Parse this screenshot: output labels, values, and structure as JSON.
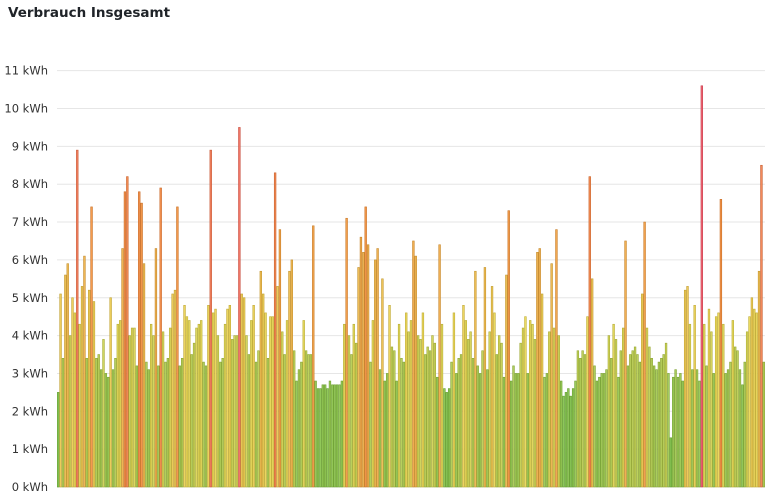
{
  "panel": {
    "title": "Verbrauch Insgesamt"
  },
  "chart_data": {
    "type": "bar",
    "title": "Verbrauch Insgesamt",
    "ylabel": "",
    "unit": "kWh",
    "ylim": [
      0,
      11.5
    ],
    "yticks": [
      0,
      1,
      2,
      3,
      4,
      5,
      6,
      7,
      8,
      9,
      10,
      11
    ],
    "ytick_labels": [
      "0 kWh",
      "1 kWh",
      "2 kWh",
      "3 kWh",
      "4 kWh",
      "5 kWh",
      "6 kWh",
      "7 kWh",
      "8 kWh",
      "9 kWh",
      "10 kWh",
      "11 kWh"
    ],
    "grid": true,
    "color_scale": {
      "low": "#7ab648",
      "mid": "#d9c84e",
      "high": "#e2873b",
      "max": "#e05766"
    },
    "values": [
      2.5,
      5.1,
      3.4,
      5.6,
      5.9,
      4.0,
      5.0,
      4.6,
      8.9,
      4.3,
      5.3,
      6.1,
      3.4,
      5.2,
      7.4,
      4.9,
      3.4,
      3.5,
      3.1,
      3.9,
      3.0,
      2.9,
      5.0,
      3.1,
      3.4,
      4.3,
      4.4,
      6.3,
      7.8,
      8.2,
      4.0,
      4.2,
      4.2,
      3.2,
      7.8,
      7.5,
      5.9,
      3.3,
      3.1,
      4.3,
      4.0,
      6.3,
      3.2,
      7.9,
      4.1,
      3.3,
      3.4,
      4.2,
      5.1,
      5.2,
      7.4,
      3.2,
      3.4,
      4.8,
      4.5,
      4.4,
      3.5,
      3.8,
      4.2,
      4.3,
      4.4,
      3.3,
      3.2,
      4.8,
      8.9,
      4.6,
      4.7,
      4.0,
      3.3,
      3.4,
      4.3,
      4.7,
      4.8,
      3.9,
      4.0,
      4.0,
      9.5,
      5.1,
      5.0,
      4.0,
      3.5,
      4.4,
      4.8,
      3.3,
      3.6,
      5.7,
      5.1,
      4.6,
      3.4,
      4.5,
      4.5,
      8.3,
      5.3,
      6.8,
      4.1,
      3.5,
      4.4,
      5.7,
      6.0,
      3.6,
      2.8,
      3.1,
      3.3,
      4.4,
      3.6,
      3.5,
      3.5,
      6.9,
      2.8,
      2.6,
      2.6,
      2.7,
      2.7,
      2.6,
      2.8,
      2.7,
      2.7,
      2.7,
      2.7,
      2.8,
      4.3,
      7.1,
      4.0,
      3.5,
      4.3,
      3.8,
      5.8,
      6.6,
      6.2,
      7.4,
      6.4,
      3.3,
      4.4,
      6.0,
      6.3,
      3.1,
      5.5,
      2.8,
      3.0,
      4.8,
      3.7,
      3.6,
      2.8,
      4.3,
      3.4,
      3.3,
      4.6,
      4.1,
      4.4,
      6.5,
      6.1,
      4.0,
      3.9,
      4.6,
      3.5,
      3.7,
      3.6,
      4.0,
      3.8,
      2.9,
      6.4,
      4.3,
      2.6,
      2.5,
      2.6,
      3.3,
      4.6,
      3.0,
      3.4,
      3.5,
      4.8,
      4.4,
      3.9,
      4.1,
      3.4,
      5.7,
      3.2,
      3.0,
      3.6,
      5.8,
      3.1,
      4.1,
      5.3,
      4.6,
      3.5,
      4.0,
      3.8,
      2.9,
      5.6,
      7.3,
      2.8,
      3.2,
      3.0,
      3.0,
      3.8,
      4.2,
      4.5,
      3.0,
      4.4,
      4.3,
      3.9,
      6.2,
      6.3,
      5.1,
      2.9,
      3.0,
      4.1,
      5.9,
      4.2,
      6.8,
      4.0,
      2.8,
      2.4,
      2.5,
      2.6,
      2.4,
      2.6,
      2.8,
      3.6,
      3.4,
      3.6,
      3.5,
      4.5,
      8.2,
      5.5,
      3.2,
      2.8,
      2.9,
      3.0,
      3.0,
      3.1,
      4.0,
      3.4,
      4.3,
      3.9,
      2.9,
      3.6,
      4.2,
      6.5,
      3.2,
      3.5,
      3.6,
      3.7,
      3.5,
      3.3,
      5.1,
      7.0,
      4.2,
      3.7,
      3.4,
      3.2,
      3.1,
      3.3,
      3.4,
      3.5,
      3.8,
      3.0,
      1.3,
      2.9,
      3.1,
      2.9,
      3.0,
      2.8,
      5.2,
      5.3,
      4.3,
      3.1,
      4.8,
      3.1,
      2.8,
      10.6,
      4.3,
      3.2,
      4.7,
      4.1,
      3.0,
      4.5,
      4.6,
      7.6,
      4.3,
      3.0,
      3.1,
      3.3,
      4.4,
      3.7,
      3.6,
      3.1,
      2.7,
      3.3,
      4.1,
      4.5,
      5.0,
      4.7,
      4.6,
      5.7,
      8.5,
      3.3
    ]
  }
}
